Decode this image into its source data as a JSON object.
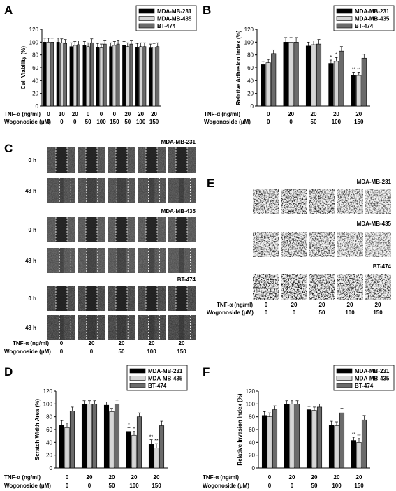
{
  "colors": {
    "MDA-MB-231": "#000000",
    "MDA-MB-435": "#d6d6d6",
    "BT-474": "#6b6b6b"
  },
  "labels": {
    "tnf": "TNF-α (ng/ml)",
    "wog": "Wogonoside (μM)",
    "h0": "0 h",
    "h48": "48 h",
    "cells": [
      "MDA-MB-231",
      "MDA-MB-435",
      "BT-474"
    ]
  },
  "chart_data": [
    {
      "panel": "A",
      "type": "bar",
      "ylabel": "Cell Viability (%)",
      "ylim": [
        0,
        120
      ],
      "yticks": [
        0,
        20,
        40,
        60,
        80,
        100,
        120
      ],
      "tnf": [
        "0",
        "10",
        "20",
        "0",
        "0",
        "0",
        "20",
        "20",
        "20"
      ],
      "wogonoside": [
        "0",
        "0",
        "0",
        "50",
        "100",
        "150",
        "50",
        "100",
        "150"
      ],
      "series": [
        {
          "name": "MDA-MB-231",
          "values": [
            100,
            100,
            93,
            95,
            92,
            93,
            95,
            92,
            91
          ],
          "errors": [
            6,
            6,
            6,
            6,
            6,
            6,
            6,
            6,
            6
          ],
          "stars": [
            "",
            "",
            "",
            "",
            "",
            "",
            "",
            "",
            ""
          ]
        },
        {
          "name": "MDA-MB-435",
          "values": [
            100,
            99,
            95,
            93,
            91,
            95,
            93,
            93,
            92
          ],
          "errors": [
            6,
            6,
            6,
            6,
            6,
            6,
            6,
            6,
            6
          ],
          "stars": [
            "",
            "",
            "",
            "",
            "",
            "",
            "",
            "",
            ""
          ]
        },
        {
          "name": "BT-474",
          "values": [
            100,
            98,
            96,
            99,
            97,
            97,
            97,
            93,
            93
          ],
          "errors": [
            6,
            6,
            6,
            6,
            6,
            6,
            6,
            6,
            6
          ],
          "stars": [
            "",
            "",
            "",
            "",
            "",
            "",
            "",
            "",
            ""
          ]
        }
      ]
    },
    {
      "panel": "B",
      "type": "bar",
      "ylabel": "Relative Adhesion Index (%)",
      "ylim": [
        0,
        120
      ],
      "yticks": [
        0,
        20,
        40,
        60,
        80,
        100,
        120
      ],
      "tnf": [
        "0",
        "20",
        "20",
        "20",
        "20"
      ],
      "wogonoside": [
        "0",
        "0",
        "50",
        "100",
        "150"
      ],
      "series": [
        {
          "name": "MDA-MB-231",
          "values": [
            65,
            100,
            94,
            67,
            48
          ],
          "errors": [
            5,
            7,
            6,
            5,
            5
          ],
          "stars": [
            "",
            "",
            "",
            "*",
            "**"
          ]
        },
        {
          "name": "MDA-MB-435",
          "values": [
            68,
            100,
            96,
            70,
            48
          ],
          "errors": [
            5,
            7,
            6,
            6,
            5
          ],
          "stars": [
            "",
            "",
            "",
            "*",
            "**"
          ]
        },
        {
          "name": "BT-474",
          "values": [
            82,
            100,
            97,
            86,
            75
          ],
          "errors": [
            6,
            7,
            7,
            7,
            6
          ],
          "stars": [
            "",
            "",
            "",
            "",
            ""
          ]
        }
      ]
    },
    {
      "panel": "D",
      "type": "bar",
      "ylabel": "Scratch Width Area (%)",
      "ylim": [
        0,
        120
      ],
      "yticks": [
        0,
        20,
        40,
        60,
        80,
        100,
        120
      ],
      "tnf": [
        "0",
        "20",
        "20",
        "20",
        "20"
      ],
      "wogonoside": [
        "0",
        "0",
        "50",
        "100",
        "150"
      ],
      "series": [
        {
          "name": "MDA-MB-231",
          "values": [
            67,
            100,
            98,
            57,
            37
          ],
          "errors": [
            7,
            5,
            5,
            6,
            7
          ],
          "stars": [
            "",
            "",
            "",
            "*",
            "**"
          ]
        },
        {
          "name": "MDA-MB-435",
          "values": [
            63,
            100,
            88,
            51,
            31
          ],
          "errors": [
            7,
            5,
            5,
            6,
            7
          ],
          "stars": [
            "",
            "",
            "",
            "*",
            "**"
          ]
        },
        {
          "name": "BT-474",
          "values": [
            89,
            100,
            100,
            80,
            66
          ],
          "errors": [
            6,
            5,
            6,
            6,
            7
          ],
          "stars": [
            "",
            "",
            "",
            "",
            ""
          ]
        }
      ]
    },
    {
      "panel": "F",
      "type": "bar",
      "ylabel": "Relative Invasion Index (%)",
      "ylim": [
        0,
        120
      ],
      "yticks": [
        0,
        20,
        40,
        60,
        80,
        100,
        120
      ],
      "tnf": [
        "0",
        "20",
        "20",
        "20",
        "20"
      ],
      "wogonoside": [
        "0",
        "0",
        "50",
        "100",
        "150"
      ],
      "series": [
        {
          "name": "MDA-MB-231",
          "values": [
            82,
            100,
            91,
            67,
            43
          ],
          "errors": [
            6,
            5,
            5,
            6,
            5
          ],
          "stars": [
            "",
            "",
            "",
            "",
            "**"
          ]
        },
        {
          "name": "MDA-MB-435",
          "values": [
            80,
            100,
            90,
            66,
            40
          ],
          "errors": [
            6,
            5,
            5,
            6,
            6
          ],
          "stars": [
            "",
            "",
            "",
            "",
            "**"
          ]
        },
        {
          "name": "BT-474",
          "values": [
            91,
            100,
            95,
            86,
            75
          ],
          "errors": [
            6,
            5,
            5,
            7,
            7
          ],
          "stars": [
            "",
            "",
            "",
            "",
            ""
          ]
        }
      ]
    }
  ],
  "panel_c": {
    "panel": "C",
    "tnf": [
      "0",
      "20",
      "20",
      "20",
      "20"
    ],
    "wogonoside": [
      "0",
      "0",
      "50",
      "100",
      "150"
    ],
    "gap_0h": [
      1,
      1,
      1,
      1,
      1
    ],
    "gap_48h": [
      0.35,
      0.9,
      0.85,
      0.55,
      0.45
    ]
  },
  "panel_e": {
    "panel": "E",
    "tnf": [
      "0",
      "20",
      "20",
      "20",
      "20"
    ],
    "wogonoside": [
      "0",
      "0",
      "50",
      "100",
      "150"
    ]
  }
}
